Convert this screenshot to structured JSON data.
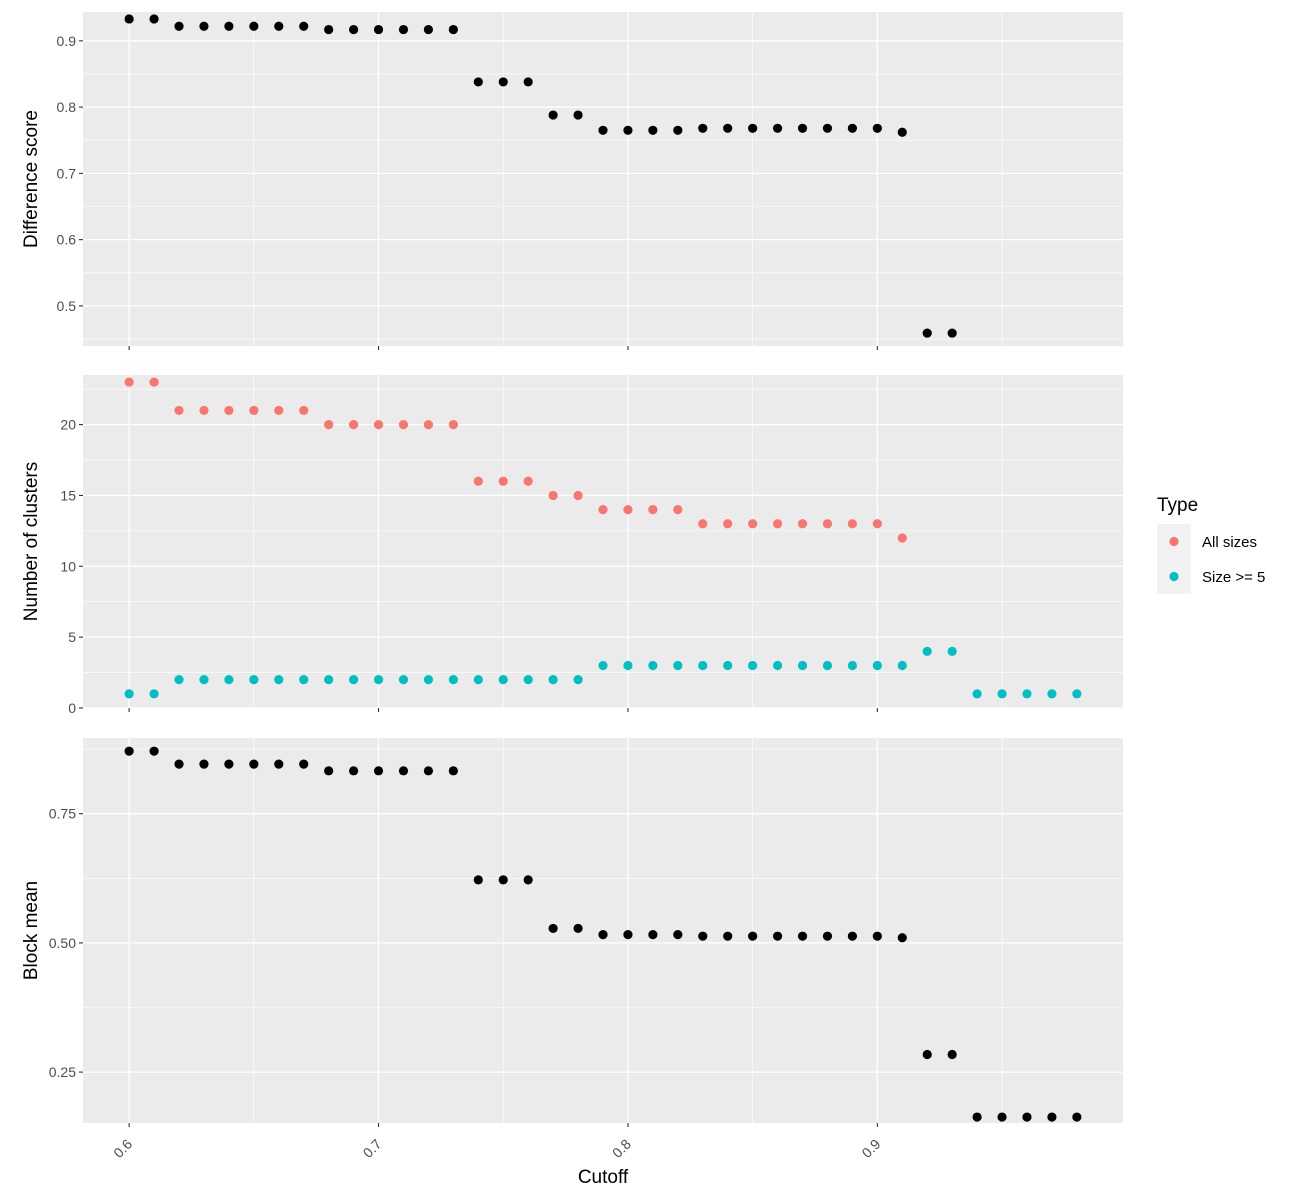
{
  "chart_data": [
    {
      "type": "scatter",
      "ylabel": "Difference score",
      "xlabel": "",
      "xlim": [
        0.5815,
        0.9985
      ],
      "ylim": [
        0.4395,
        0.9435
      ],
      "yticks": [
        0.5,
        0.6,
        0.7,
        0.8,
        0.9
      ],
      "ytick_labels": [
        "0.5",
        "0.6",
        "0.7",
        "0.8",
        "0.9"
      ],
      "grid": true,
      "series": [
        {
          "name": "",
          "color": "#000000",
          "x": [
            0.6,
            0.61,
            0.62,
            0.63,
            0.64,
            0.65,
            0.66,
            0.67,
            0.68,
            0.69,
            0.7,
            0.71,
            0.72,
            0.73,
            0.74,
            0.75,
            0.76,
            0.77,
            0.78,
            0.79,
            0.8,
            0.81,
            0.82,
            0.83,
            0.84,
            0.85,
            0.86,
            0.87,
            0.88,
            0.89,
            0.9,
            0.91,
            0.92,
            0.93
          ],
          "y": [
            0.933,
            0.933,
            0.922,
            0.922,
            0.922,
            0.922,
            0.922,
            0.922,
            0.917,
            0.917,
            0.917,
            0.917,
            0.917,
            0.917,
            0.838,
            0.838,
            0.838,
            0.788,
            0.788,
            0.765,
            0.765,
            0.765,
            0.765,
            0.768,
            0.768,
            0.768,
            0.768,
            0.768,
            0.768,
            0.768,
            0.768,
            0.762,
            0.459,
            0.459
          ]
        }
      ]
    },
    {
      "type": "scatter",
      "ylabel": "Number of clusters",
      "xlabel": "",
      "xlim": [
        0.5815,
        0.9985
      ],
      "ylim": [
        0,
        23.5
      ],
      "yticks": [
        0,
        5,
        10,
        15,
        20
      ],
      "ytick_labels": [
        "0",
        "5",
        "10",
        "15",
        "20"
      ],
      "grid": true,
      "series": [
        {
          "name": "All sizes",
          "color": "#F8766D",
          "x": [
            0.6,
            0.61,
            0.62,
            0.63,
            0.64,
            0.65,
            0.66,
            0.67,
            0.68,
            0.69,
            0.7,
            0.71,
            0.72,
            0.73,
            0.74,
            0.75,
            0.76,
            0.77,
            0.78,
            0.79,
            0.8,
            0.81,
            0.82,
            0.83,
            0.84,
            0.85,
            0.86,
            0.87,
            0.88,
            0.89,
            0.9,
            0.91
          ],
          "y": [
            23,
            23,
            21,
            21,
            21,
            21,
            21,
            21,
            20,
            20,
            20,
            20,
            20,
            20,
            16,
            16,
            16,
            15,
            15,
            14,
            14,
            14,
            14,
            13,
            13,
            13,
            13,
            13,
            13,
            13,
            13,
            12
          ]
        },
        {
          "name": "Size >= 5",
          "color": "#00BFC4",
          "x": [
            0.6,
            0.61,
            0.62,
            0.63,
            0.64,
            0.65,
            0.66,
            0.67,
            0.68,
            0.69,
            0.7,
            0.71,
            0.72,
            0.73,
            0.74,
            0.75,
            0.76,
            0.77,
            0.78,
            0.79,
            0.8,
            0.81,
            0.82,
            0.83,
            0.84,
            0.85,
            0.86,
            0.87,
            0.88,
            0.89,
            0.9,
            0.91,
            0.92,
            0.93,
            0.94,
            0.95,
            0.96,
            0.97,
            0.98
          ],
          "y": [
            1,
            1,
            2,
            2,
            2,
            2,
            2,
            2,
            2,
            2,
            2,
            2,
            2,
            2,
            2,
            2,
            2,
            2,
            2,
            3,
            3,
            3,
            3,
            3,
            3,
            3,
            3,
            3,
            3,
            3,
            3,
            3,
            4,
            4,
            1,
            1,
            1,
            1,
            1
          ]
        }
      ]
    },
    {
      "type": "scatter",
      "ylabel": "Block mean",
      "xlabel": "Cutoff",
      "xlim": [
        0.5815,
        0.9985
      ],
      "ylim": [
        0.1515,
        0.8965
      ],
      "yticks": [
        0.25,
        0.5,
        0.75
      ],
      "ytick_labels": [
        "0.25",
        "0.50",
        "0.75"
      ],
      "xticks": [
        0.6,
        0.7,
        0.8,
        0.9
      ],
      "xtick_labels": [
        "0.6",
        "0.7",
        "0.8",
        "0.9"
      ],
      "grid": true,
      "series": [
        {
          "name": "",
          "color": "#000000",
          "x": [
            0.6,
            0.61,
            0.62,
            0.63,
            0.64,
            0.65,
            0.66,
            0.67,
            0.68,
            0.69,
            0.7,
            0.71,
            0.72,
            0.73,
            0.74,
            0.75,
            0.76,
            0.77,
            0.78,
            0.79,
            0.8,
            0.81,
            0.82,
            0.83,
            0.84,
            0.85,
            0.86,
            0.87,
            0.88,
            0.89,
            0.9,
            0.91,
            0.92,
            0.93,
            0.94,
            0.95,
            0.96,
            0.97,
            0.98
          ],
          "y": [
            0.871,
            0.871,
            0.846,
            0.846,
            0.846,
            0.846,
            0.846,
            0.846,
            0.833,
            0.833,
            0.833,
            0.833,
            0.833,
            0.833,
            0.622,
            0.622,
            0.622,
            0.528,
            0.528,
            0.516,
            0.516,
            0.516,
            0.516,
            0.513,
            0.513,
            0.513,
            0.513,
            0.513,
            0.513,
            0.513,
            0.513,
            0.51,
            0.284,
            0.284,
            0.163,
            0.163,
            0.163,
            0.163,
            0.163
          ]
        }
      ]
    }
  ],
  "legend": {
    "title": "Type",
    "position": "right",
    "items": [
      {
        "label": "All sizes",
        "color": "#F8766D"
      },
      {
        "label": "Size >= 5",
        "color": "#00BFC4"
      }
    ]
  }
}
